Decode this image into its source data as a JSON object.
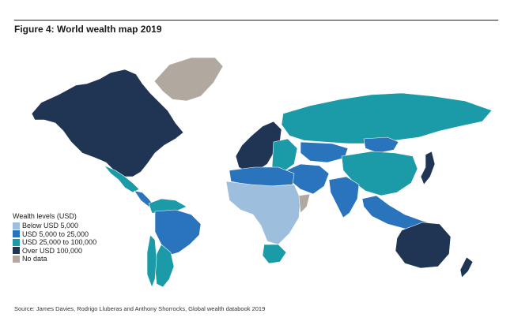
{
  "figure": {
    "title": "Figure 4: World wealth map 2019",
    "source": "Source: James Davies, Rodrigo Lluberas and Anthony Shorrocks, Global wealth databook 2019"
  },
  "legend": {
    "title": "Wealth levels (USD)",
    "items": [
      {
        "label": "Below USD 5,000",
        "color": "#9dbedd"
      },
      {
        "label": "USD 5,000 to 25,000",
        "color": "#2a73bd"
      },
      {
        "label": "USD 25,000 to 100,000",
        "color": "#1b9aa8"
      },
      {
        "label": "Over USD 100,000",
        "color": "#1f3553"
      },
      {
        "label": "No data",
        "color": "#b1a8a0"
      }
    ]
  },
  "regions": [
    {
      "name": "north-america",
      "level": 3
    },
    {
      "name": "greenland",
      "level": 4
    },
    {
      "name": "mexico",
      "level": 2
    },
    {
      "name": "central-america",
      "level": 1
    },
    {
      "name": "south-america-north",
      "level": 2
    },
    {
      "name": "brazil",
      "level": 1
    },
    {
      "name": "south-america-south",
      "level": 2
    },
    {
      "name": "chile",
      "level": 2
    },
    {
      "name": "western-europe",
      "level": 3
    },
    {
      "name": "eastern-europe",
      "level": 2
    },
    {
      "name": "russia",
      "level": 2
    },
    {
      "name": "middle-east",
      "level": 1
    },
    {
      "name": "north-africa",
      "level": 1
    },
    {
      "name": "sub-saharan-africa",
      "level": 0
    },
    {
      "name": "south-africa",
      "level": 2
    },
    {
      "name": "horn-of-africa",
      "level": 4
    },
    {
      "name": "central-asia",
      "level": 1
    },
    {
      "name": "south-asia",
      "level": 1
    },
    {
      "name": "china",
      "level": 2
    },
    {
      "name": "mongolia",
      "level": 1
    },
    {
      "name": "southeast-asia",
      "level": 1
    },
    {
      "name": "japan",
      "level": 3
    },
    {
      "name": "australia",
      "level": 3
    },
    {
      "name": "new-zealand",
      "level": 3
    }
  ]
}
